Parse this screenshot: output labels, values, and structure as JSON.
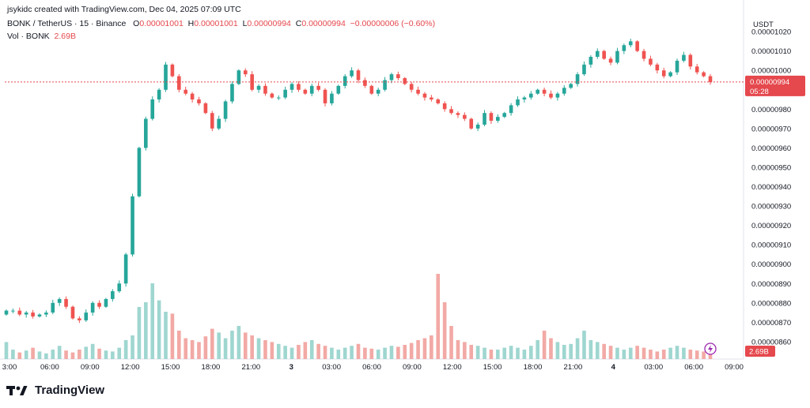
{
  "header": {
    "credit": "jsykidc created with TradingView.com, Dec 04, 2025 07:09 UTC",
    "symbol": "BONK / TetherUS · 15 · Binance",
    "o_label": "O",
    "o_value": "0.00001001",
    "h_label": "H",
    "h_value": "0.00001001",
    "l_label": "L",
    "l_value": "0.00000994",
    "c_label": "C",
    "c_value": "0.00000994",
    "change": "−0.00000006 (−0.60%)",
    "vol_label": "Vol · BONK",
    "vol_value": "2.69B"
  },
  "brand": {
    "name": "TradingView",
    "logo_icon": "tradingview-logo-icon"
  },
  "colors": {
    "up": "#26a69a",
    "down": "#ef5350",
    "vol_up": "#9fd6d0",
    "vol_down": "#f2a9a5",
    "price_tag": "#e5484d"
  },
  "chart_data": {
    "type": "candlestick",
    "currency": "USDT",
    "ylim": [
      8.51e-06,
      1.029e-05
    ],
    "y_ticks": [
      "0.00001020",
      "0.00001010",
      "0.00001000",
      "0.00000980",
      "0.00000970",
      "0.00000960",
      "0.00000950",
      "0.00000940",
      "0.00000930",
      "0.00000920",
      "0.00000910",
      "0.00000900",
      "0.00000890",
      "0.00000880",
      "0.00000870",
      "0.00000860"
    ],
    "x_ticks": [
      "3:00",
      "06:00",
      "09:00",
      "12:00",
      "15:00",
      "18:00",
      "21:00",
      "3",
      "03:00",
      "06:00",
      "09:00",
      "12:00",
      "15:00",
      "18:00",
      "21:00",
      "4",
      "03:00",
      "06:00",
      "09:00"
    ],
    "last_price": "0.00000994",
    "countdown": "05:28",
    "volume_tag": "2.69B",
    "close_path": [
      876,
      876,
      874,
      875,
      873,
      874,
      875,
      880,
      882,
      878,
      872,
      871,
      875,
      880,
      878,
      882,
      886,
      890,
      905,
      935,
      960,
      975,
      985,
      990,
      1003,
      997,
      990,
      988,
      985,
      983,
      978,
      970,
      975,
      984,
      993,
      1000,
      998,
      990,
      992,
      988,
      986,
      986,
      990,
      993,
      990,
      988,
      992,
      990,
      983,
      988,
      992,
      997,
      1000,
      995,
      992,
      988,
      990,
      995,
      998,
      996,
      993,
      990,
      988,
      986,
      985,
      983,
      980,
      978,
      977,
      975,
      970,
      972,
      978,
      974,
      976,
      978,
      982,
      985,
      986,
      988,
      990,
      988,
      986,
      988,
      991,
      993,
      998,
      1003,
      1007,
      1010,
      1006,
      1004,
      1010,
      1013,
      1015,
      1010,
      1006,
      1003,
      1000,
      997,
      999,
      1005,
      1008,
      1002,
      999,
      997,
      994
    ],
    "volume_path": [
      0.18,
      0.1,
      0.07,
      0.09,
      0.12,
      0.08,
      0.06,
      0.1,
      0.14,
      0.09,
      0.07,
      0.1,
      0.13,
      0.16,
      0.11,
      0.09,
      0.08,
      0.12,
      0.2,
      0.25,
      0.55,
      0.6,
      0.8,
      0.62,
      0.5,
      0.48,
      0.3,
      0.22,
      0.2,
      0.18,
      0.24,
      0.32,
      0.28,
      0.22,
      0.3,
      0.35,
      0.28,
      0.25,
      0.22,
      0.2,
      0.18,
      0.16,
      0.14,
      0.12,
      0.15,
      0.18,
      0.2,
      0.16,
      0.14,
      0.12,
      0.1,
      0.12,
      0.14,
      0.16,
      0.12,
      0.11,
      0.1,
      0.12,
      0.14,
      0.13,
      0.15,
      0.17,
      0.2,
      0.22,
      0.25,
      0.9,
      0.6,
      0.35,
      0.2,
      0.18,
      0.15,
      0.14,
      0.12,
      0.1,
      0.1,
      0.12,
      0.14,
      0.12,
      0.1,
      0.14,
      0.2,
      0.3,
      0.22,
      0.18,
      0.15,
      0.16,
      0.22,
      0.3,
      0.2,
      0.18,
      0.16,
      0.14,
      0.12,
      0.1,
      0.12,
      0.14,
      0.12,
      0.1,
      0.08,
      0.1,
      0.12,
      0.14,
      0.12,
      0.1,
      0.09,
      0.08,
      0.1
    ]
  }
}
